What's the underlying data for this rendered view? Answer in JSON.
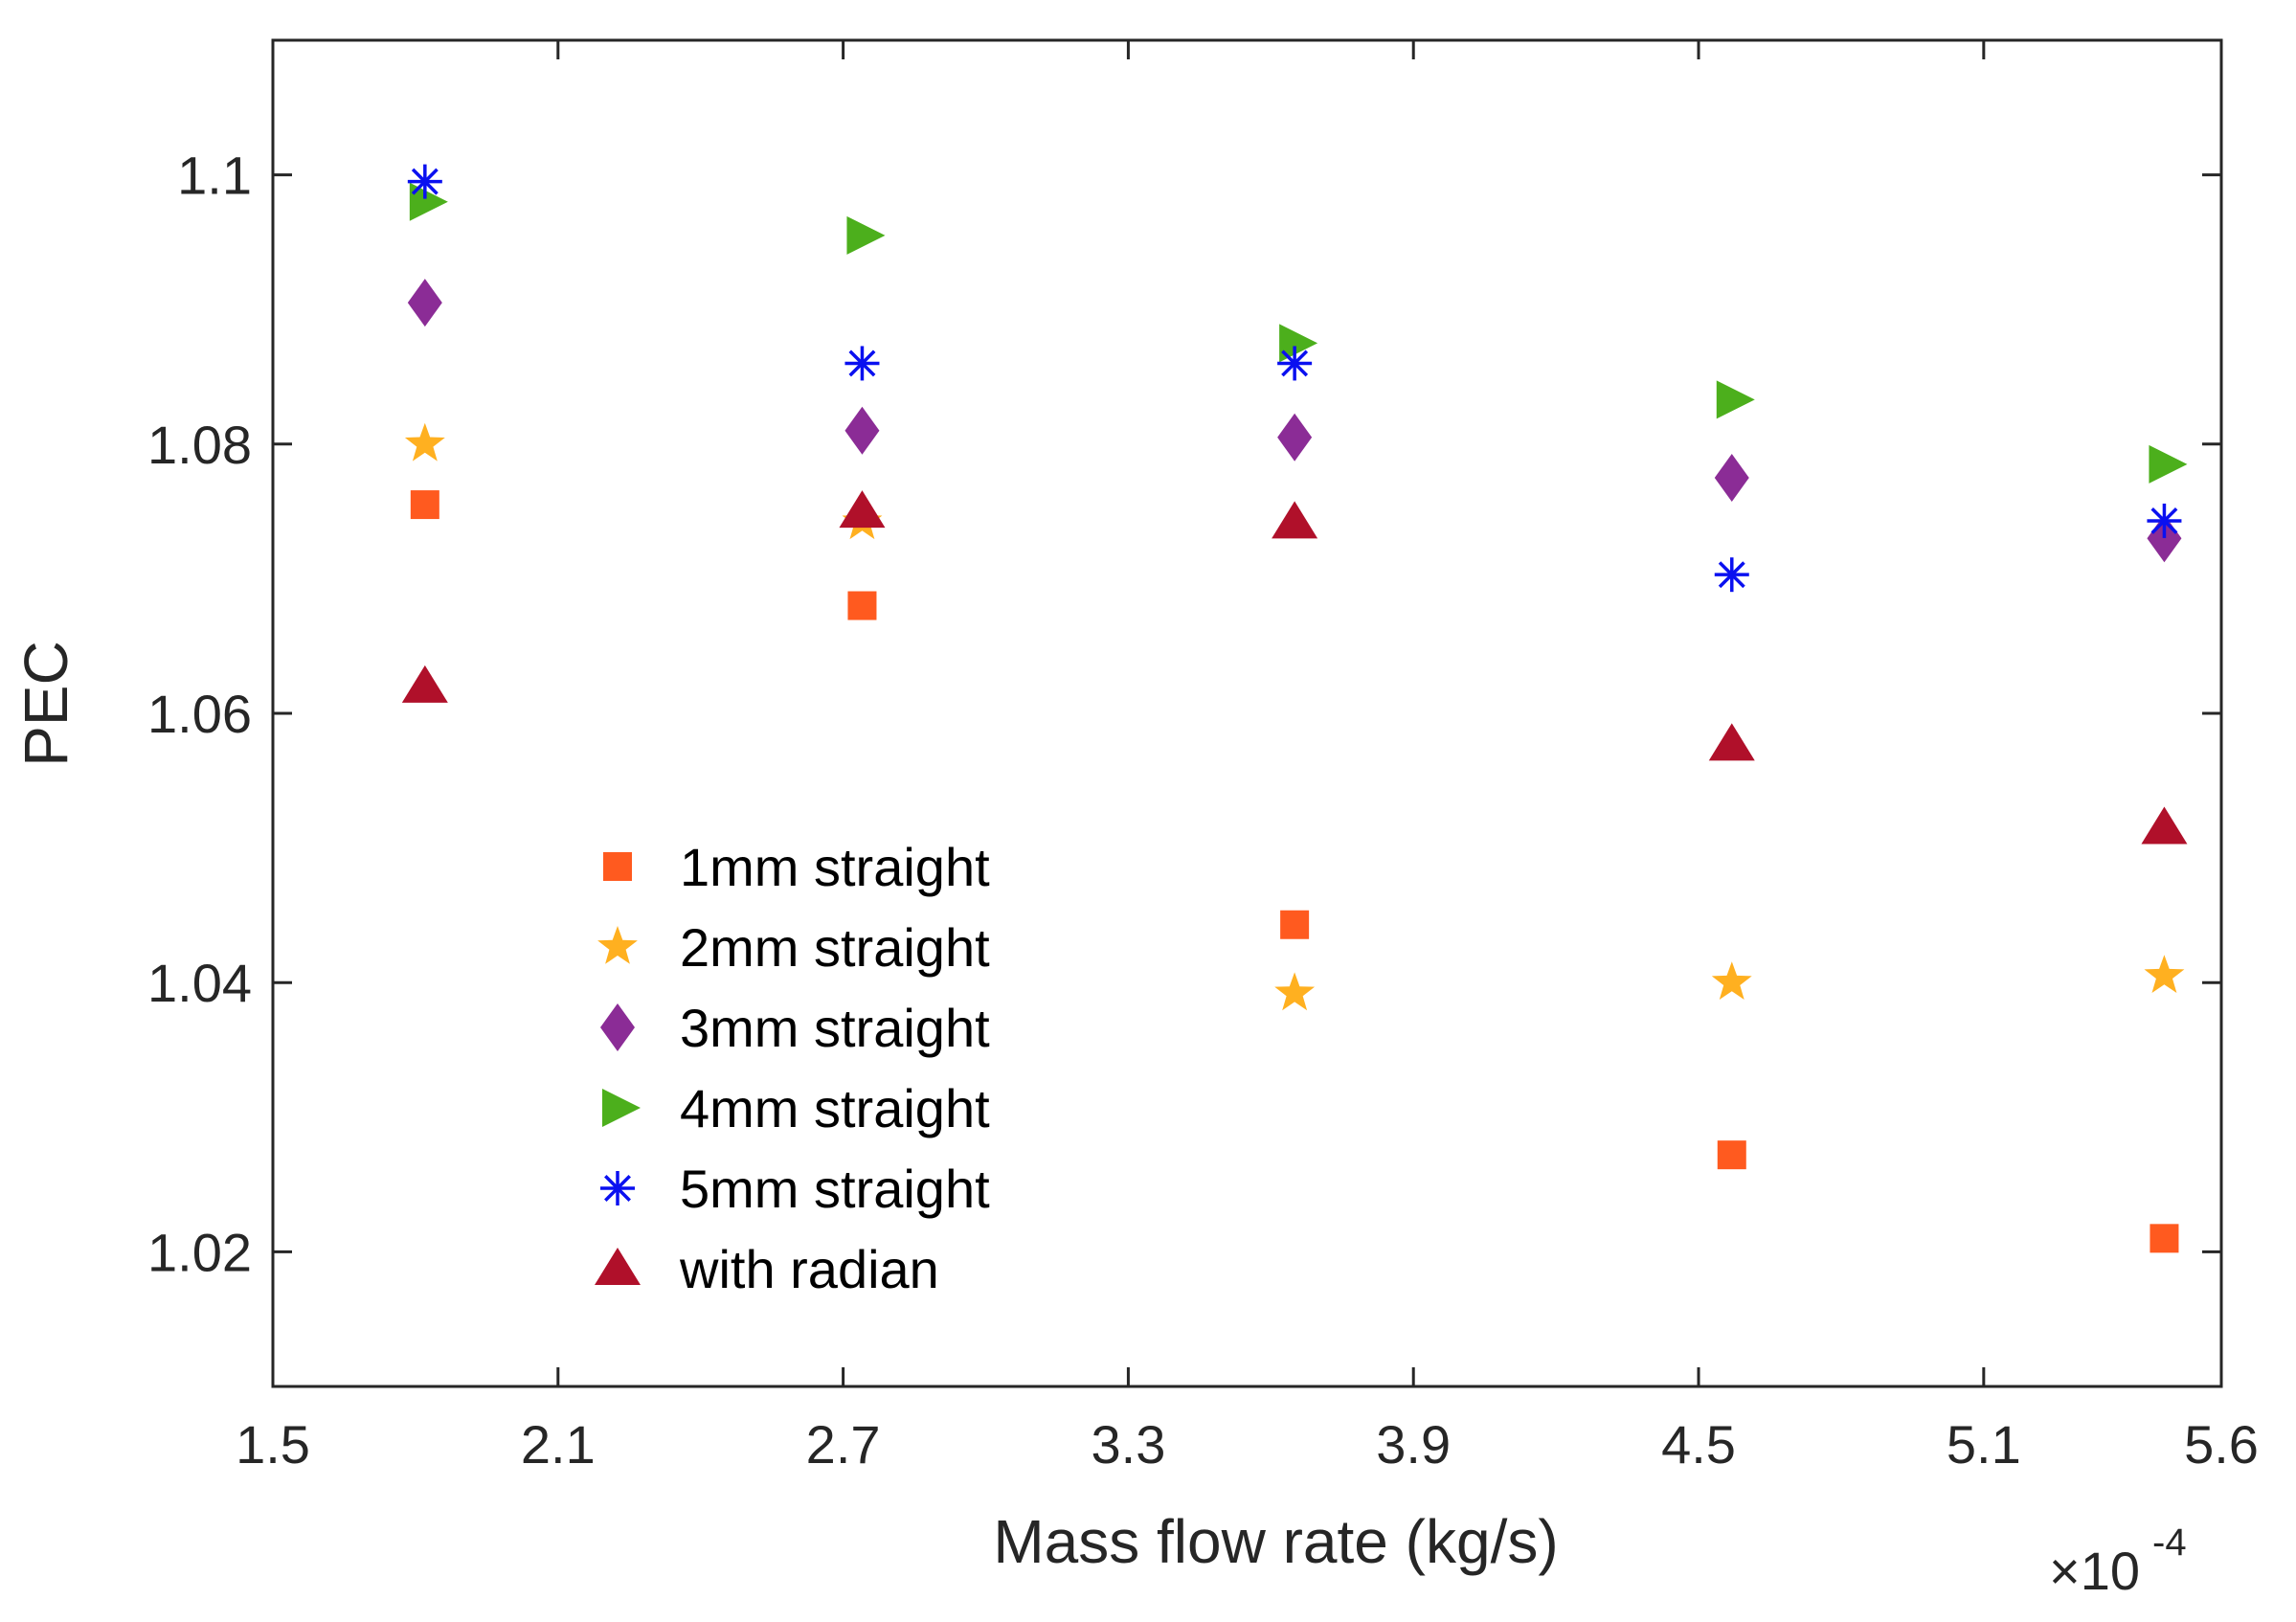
{
  "chart_data": {
    "type": "scatter",
    "title": "",
    "xlabel": "Mass flow rate (kg/s)",
    "ylabel": "PEC",
    "x_multiplier": "×10",
    "x_multiplier_exponent": "-4",
    "xlim": [
      1.5,
      5.6
    ],
    "ylim": [
      1.01,
      1.11
    ],
    "xticks": [
      1.5,
      2.1,
      2.7,
      3.3,
      3.9,
      4.5,
      5.1,
      5.6
    ],
    "xtick_labels": [
      "1.5",
      "2.1",
      "2.7",
      "3.3",
      "3.9",
      "4.5",
      "5.1",
      "5.6"
    ],
    "yticks": [
      1.02,
      1.04,
      1.06,
      1.08,
      1.1
    ],
    "ytick_labels": [
      "1.02",
      "1.04",
      "1.06",
      "1.08",
      "1.1"
    ],
    "grid": false,
    "legend_position": "lower-left",
    "series": [
      {
        "name": "1mm straight",
        "marker": "square",
        "color": "#FF5A1F",
        "points": [
          [
            1.82,
            1.0755
          ],
          [
            2.74,
            1.068
          ],
          [
            3.65,
            1.0443
          ],
          [
            4.57,
            1.0272
          ],
          [
            5.48,
            1.021
          ]
        ]
      },
      {
        "name": "2mm straight",
        "marker": "star",
        "color": "#FFB020",
        "points": [
          [
            1.82,
            1.08
          ],
          [
            2.74,
            1.0742
          ],
          [
            3.65,
            1.0392
          ],
          [
            4.57,
            1.04
          ],
          [
            5.48,
            1.0405
          ]
        ]
      },
      {
        "name": "3mm straight",
        "marker": "diamond",
        "color": "#8B2C96",
        "points": [
          [
            1.82,
            1.0905
          ],
          [
            2.74,
            1.081
          ],
          [
            3.65,
            1.0805
          ],
          [
            4.57,
            1.0775
          ],
          [
            5.48,
            1.073
          ]
        ]
      },
      {
        "name": "4mm straight",
        "marker": "triangle-right",
        "color": "#4CAF1C",
        "points": [
          [
            1.82,
            1.098
          ],
          [
            2.74,
            1.0955
          ],
          [
            3.65,
            1.0875
          ],
          [
            4.57,
            1.0833
          ],
          [
            5.48,
            1.0785
          ]
        ]
      },
      {
        "name": "5mm straight",
        "marker": "asterisk",
        "color": "#0A10F0",
        "points": [
          [
            1.82,
            1.0995
          ],
          [
            2.74,
            1.086
          ],
          [
            3.65,
            1.086
          ],
          [
            4.57,
            1.0703
          ],
          [
            5.48,
            1.0743
          ]
        ]
      },
      {
        "name": "with radian",
        "marker": "triangle-up",
        "color": "#B0102A",
        "points": [
          [
            1.82,
            1.062
          ],
          [
            2.74,
            1.075
          ],
          [
            3.65,
            1.0742
          ],
          [
            4.57,
            1.0577
          ],
          [
            5.48,
            1.0515
          ]
        ]
      }
    ]
  }
}
